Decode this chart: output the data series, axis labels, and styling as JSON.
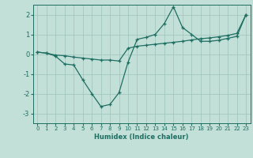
{
  "xlabel": "Humidex (Indice chaleur)",
  "xlim": [
    -0.5,
    23.5
  ],
  "ylim": [
    -3.5,
    2.5
  ],
  "xticks": [
    0,
    1,
    2,
    3,
    4,
    5,
    6,
    7,
    8,
    9,
    10,
    11,
    12,
    13,
    14,
    15,
    16,
    17,
    18,
    19,
    20,
    21,
    22,
    23
  ],
  "yticks": [
    -3,
    -2,
    -1,
    0,
    1,
    2
  ],
  "background_color": "#c2e0d8",
  "grid_color": "#9dc4bc",
  "line_color": "#1e6e62",
  "line1_x": [
    0,
    1,
    2,
    3,
    4,
    5,
    6,
    7,
    8,
    9,
    10,
    11,
    12,
    13,
    14,
    15,
    16,
    17,
    18,
    19,
    20,
    21,
    22,
    23
  ],
  "line1_y": [
    0.1,
    0.05,
    -0.1,
    -0.5,
    -0.55,
    -1.3,
    -2.0,
    -2.65,
    -2.55,
    -1.95,
    -0.4,
    0.75,
    0.85,
    1.0,
    1.55,
    2.4,
    1.35,
    1.0,
    0.65,
    0.65,
    0.7,
    0.8,
    0.9,
    2.0
  ],
  "line2_x": [
    0,
    1,
    2,
    3,
    4,
    5,
    6,
    7,
    8,
    9,
    10,
    11,
    12,
    13,
    14,
    15,
    16,
    17,
    18,
    19,
    20,
    21,
    22,
    23
  ],
  "line2_y": [
    0.1,
    0.05,
    -0.05,
    -0.08,
    -0.15,
    -0.2,
    -0.25,
    -0.3,
    -0.3,
    -0.35,
    0.3,
    0.4,
    0.45,
    0.5,
    0.55,
    0.6,
    0.65,
    0.72,
    0.78,
    0.82,
    0.88,
    0.95,
    1.05,
    2.0
  ]
}
